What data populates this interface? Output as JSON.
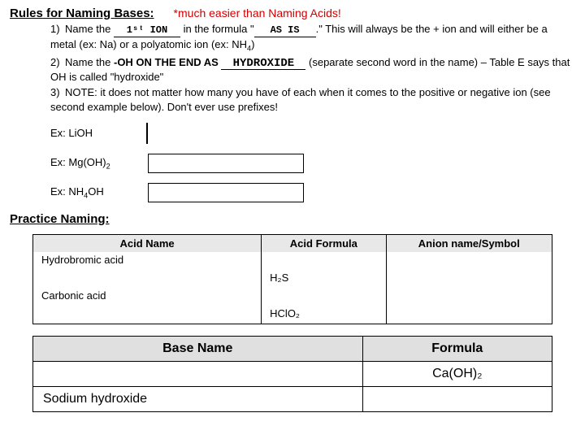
{
  "section_title": "Rules for Naming Bases:",
  "subtitle": "*much easier than Naming Acids!",
  "rules": {
    "r1": {
      "num": "1)",
      "pre": "Name the ",
      "blank1": "1ˢᵗ ION",
      "mid1": " in the formula \"",
      "blank2": "AS IS",
      "post1": ".\"  This will always be the + ion and will either be a metal (ex: Na) or a polyatomic ion (ex: NH",
      "sub4": "4",
      "post2": ")"
    },
    "r2": {
      "num": "2)",
      "pre": "Name the ",
      "bold_mid": "-OH ON THE END AS ",
      "blank": "HYDROXIDE",
      "post": " (separate second word in the name) – Table E says that OH is called \"hydroxide\""
    },
    "r3": {
      "num": "3)",
      "text": "NOTE: it does not matter how many you have of each when it comes to the positive or negative ion (see second example below).  Don't ever use prefixes!"
    }
  },
  "examples": {
    "e1": {
      "label_pre": "Ex:  LiOH"
    },
    "e2": {
      "label_pre": "Ex:  Mg(OH)",
      "sub": "2"
    },
    "e3": {
      "label_pre": "Ex:  NH",
      "sub": "4",
      "label_post": "OH"
    }
  },
  "practice_title": "Practice Naming:",
  "acid_table": {
    "headers": [
      "Acid Name",
      "Acid Formula",
      "Anion name/Symbol"
    ],
    "rows": [
      {
        "name": "Hydrobromic acid",
        "formula": "",
        "anion": ""
      },
      {
        "name": "",
        "formula": "H₂S",
        "anion": ""
      },
      {
        "name": "Carbonic acid",
        "formula": "",
        "anion": ""
      },
      {
        "name": "",
        "formula": "HClO₂",
        "anion": ""
      }
    ]
  },
  "base_table": {
    "headers": [
      "Base Name",
      "Formula"
    ],
    "rows": [
      {
        "name": "",
        "formula": "Ca(OH)₂"
      },
      {
        "name": "Sodium hydroxide",
        "formula": ""
      }
    ]
  },
  "style": {
    "blank1_width": 78,
    "blank2_width": 72,
    "blank3_width": 100,
    "ex_box1_width": 0,
    "ex_box2_width": 190,
    "ex_box3_width": 190
  }
}
